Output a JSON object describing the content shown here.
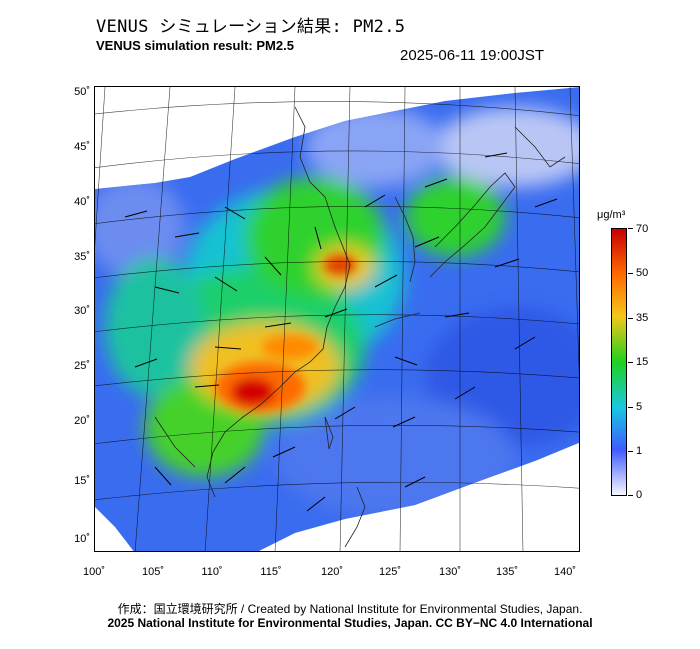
{
  "header": {
    "title_jp": "VENUS シミュレーション結果: PM2.5",
    "title_en": "VENUS simulation result: PM2.5",
    "timestamp": "2025-06-11 19:00JST"
  },
  "map": {
    "lat_labels": [
      "50˚",
      "45˚",
      "40˚",
      "35˚",
      "30˚",
      "25˚",
      "20˚",
      "15˚",
      "10˚"
    ],
    "lon_labels": [
      "100˚",
      "105˚",
      "110˚",
      "115˚",
      "120˚",
      "125˚",
      "130˚",
      "135˚",
      "140˚"
    ],
    "field": "PM2.5 concentration with wind vectors",
    "hotspots": [
      "South China (~22°N, 112°E) 50–70",
      "Shandong/Bohai (~34°N, 119°E) 50–70"
    ]
  },
  "colorbar": {
    "unit": "μg/m³",
    "ticks": [
      "70",
      "50",
      "35",
      "15",
      "5",
      "1",
      "0"
    ],
    "colors": [
      "#f7f7ff",
      "#3f5bff",
      "#19c8e0",
      "#1fd11f",
      "#f2c81a",
      "#ff6a00",
      "#c80000"
    ]
  },
  "footer": {
    "credit_line1": "作成：国立環境研究所 / Created by National Institute for Environmental Studies, Japan.",
    "credit_line2": "2025 National Institute for Environmental Studies, Japan. CC BY−NC 4.0 International"
  }
}
